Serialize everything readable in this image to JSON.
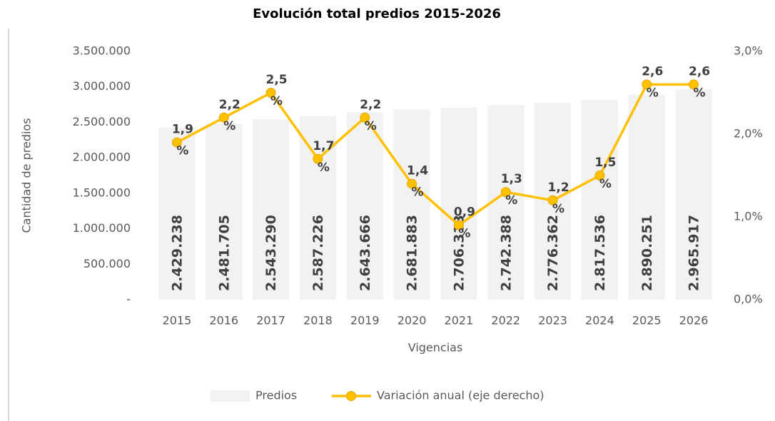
{
  "chart_data": {
    "type": "bar-line",
    "title": "Evolución total predios 2015-2026",
    "y_label": "Cantidad de predios",
    "x_label": "Vigencias",
    "categories": [
      "2015",
      "2016",
      "2017",
      "2018",
      "2019",
      "2020",
      "2021",
      "2022",
      "2023",
      "2024",
      "2025",
      "2026"
    ],
    "series": [
      {
        "name": "Predios",
        "type": "bar",
        "color": "#f2f2f2",
        "values": [
          2429238,
          2481705,
          2543290,
          2587226,
          2643666,
          2681883,
          2706313,
          2742388,
          2776362,
          2817536,
          2890251,
          2965917
        ],
        "value_labels": [
          "2.429.238",
          "2.481.705",
          "2.543.290",
          "2.587.226",
          "2.643.666",
          "2.681.883",
          "2.706.313",
          "2.742.388",
          "2.776.362",
          "2.817.536",
          "2.890.251",
          "2.965.917"
        ]
      },
      {
        "name": "Variación anual (eje derecho)",
        "type": "line",
        "axis": "y2",
        "color": "#ffc000",
        "values": [
          1.9,
          2.2,
          2.5,
          1.7,
          2.2,
          1.4,
          0.9,
          1.3,
          1.2,
          1.5,
          2.6,
          2.6
        ],
        "value_labels": [
          "1,9 %",
          "2,2 %",
          "2,5 %",
          "1,7 %",
          "2,2 %",
          "1,4 %",
          "0,9 %",
          "1,3 %",
          "1,2 %",
          "1,5 %",
          "2,6 %",
          "2,6 %"
        ]
      }
    ],
    "ylim": [
      0,
      3500000
    ],
    "yticks": [
      {
        "value": 0,
        "label": "-"
      },
      {
        "value": 500000,
        "label": "500.000"
      },
      {
        "value": 1000000,
        "label": "1.000.000"
      },
      {
        "value": 1500000,
        "label": "1.500.000"
      },
      {
        "value": 2000000,
        "label": "2.000.000"
      },
      {
        "value": 2500000,
        "label": "2.500.000"
      },
      {
        "value": 3000000,
        "label": "3.000.000"
      },
      {
        "value": 3500000,
        "label": "3.500.000"
      }
    ],
    "y2lim": [
      0,
      3
    ],
    "y2ticks": [
      {
        "value": 0,
        "label": "0,0%"
      },
      {
        "value": 1,
        "label": "1,0%"
      },
      {
        "value": 2,
        "label": "2,0%"
      },
      {
        "value": 3,
        "label": "3,0%"
      }
    ],
    "legend": "bottom",
    "grid": false
  }
}
